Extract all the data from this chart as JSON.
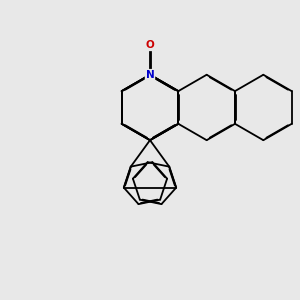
{
  "background_color": "#e8e8e8",
  "bond_color": "#000000",
  "nitrogen_color": "#0000cc",
  "oxygen_color": "#cc0000",
  "bond_width": 1.3,
  "dbo": 0.018,
  "figsize": [
    3.0,
    3.0
  ],
  "dpi": 100
}
